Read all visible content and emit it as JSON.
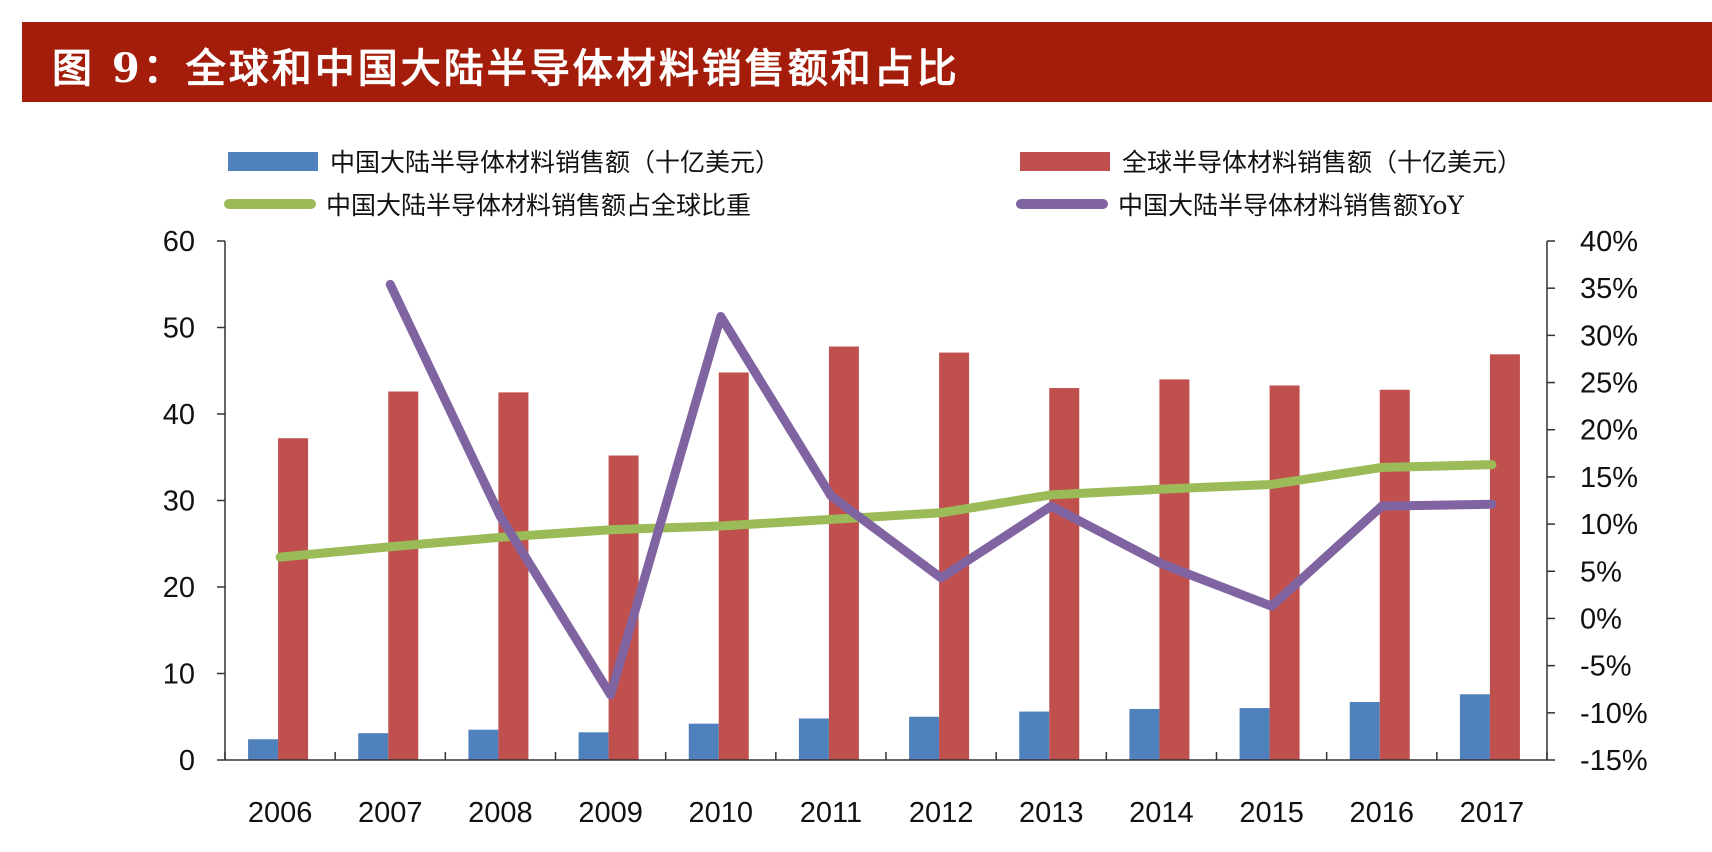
{
  "title": "图 9：全球和中国大陆半导体材料销售额和占比",
  "chart_data": {
    "type": "bar+line",
    "title": "图 9：全球和中国大陆半导体材料销售额和占比",
    "categories": [
      "2006",
      "2007",
      "2008",
      "2009",
      "2010",
      "2011",
      "2012",
      "2013",
      "2014",
      "2015",
      "2016",
      "2017"
    ],
    "y_left": {
      "range": [
        0,
        60
      ],
      "ticks": [
        "0",
        "10",
        "20",
        "30",
        "40",
        "50",
        "60"
      ]
    },
    "y_right": {
      "range": [
        -15,
        40
      ],
      "ticks": [
        "-15%",
        "-10%",
        "-5%",
        "0%",
        "5%",
        "10%",
        "15%",
        "20%",
        "25%",
        "30%",
        "35%",
        "40%"
      ]
    },
    "legend_position": "top",
    "grid": false,
    "series": [
      {
        "name": "中国大陆半导体材料销售额（十亿美元）",
        "type": "bar",
        "axis": "left",
        "color": "#4F81BD",
        "values": [
          2.4,
          3.1,
          3.5,
          3.2,
          4.2,
          4.8,
          5.0,
          5.6,
          5.9,
          6.0,
          6.7,
          7.6
        ]
      },
      {
        "name": "全球半导体材料销售额（十亿美元）",
        "type": "bar",
        "axis": "left",
        "color": "#C0504D",
        "values": [
          37.2,
          42.6,
          42.5,
          35.2,
          44.8,
          47.8,
          47.1,
          43.0,
          44.0,
          43.3,
          42.8,
          46.9
        ]
      },
      {
        "name": "中国大陆半导体材料销售额占全球比重",
        "type": "line",
        "axis": "right",
        "color": "#9BBB59",
        "values": [
          6.5,
          7.6,
          8.6,
          9.4,
          9.8,
          10.5,
          11.2,
          13.1,
          13.7,
          14.2,
          16.0,
          16.3
        ]
      },
      {
        "name": "中国大陆半导体材料销售额YoY",
        "type": "line",
        "axis": "right",
        "color": "#8064A2",
        "values": [
          null,
          35.4,
          10.8,
          -8.1,
          32.0,
          13.0,
          4.3,
          11.9,
          5.8,
          1.3,
          11.9,
          12.1
        ]
      }
    ]
  }
}
